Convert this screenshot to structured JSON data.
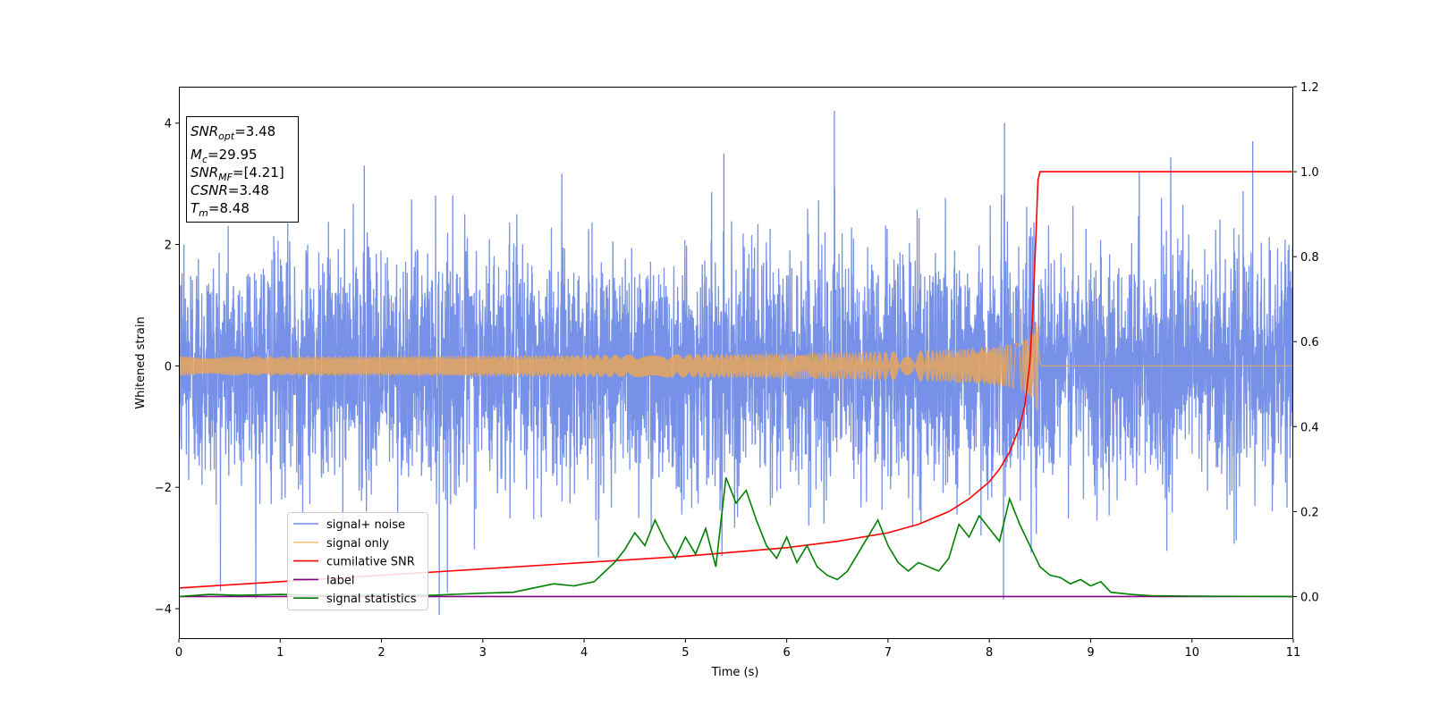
{
  "chart_data": {
    "type": "line",
    "xlabel": "Time (s)",
    "ylabel": "Whitened strain",
    "xlim": [
      0,
      11
    ],
    "ylim_left": [
      -4.5,
      4.6
    ],
    "ylim_right": [
      -0.1,
      1.2
    ],
    "x_ticks": [
      "0",
      "1",
      "2",
      "3",
      "4",
      "5",
      "6",
      "7",
      "8",
      "9",
      "10",
      "11"
    ],
    "y_ticks_left": [
      "−4",
      "−2",
      "0",
      "2",
      "4"
    ],
    "y_ticks_left_values": [
      -4,
      -2,
      0,
      2,
      4
    ],
    "y_ticks_right": [
      "0.0",
      "0.2",
      "0.4",
      "0.6",
      "0.8",
      "1.0",
      "1.2"
    ],
    "y_ticks_right_values": [
      0.0,
      0.2,
      0.4,
      0.6,
      0.8,
      1.0,
      1.2
    ],
    "legend_position": "lower-left",
    "series": [
      {
        "name": "signal+ noise",
        "color": "#6f8be6",
        "axis": "left",
        "kind": "noise",
        "sigma": 0.95,
        "spike_times": [
          0.05,
          1.83,
          5.38,
          6.47,
          8.15,
          9.48,
          10.6,
          2.57,
          8.14
        ]
      },
      {
        "name": "signal only",
        "color": "#f4c27a",
        "axis": "left",
        "kind": "chirp",
        "merger_time": 8.48,
        "peak_amplitude": 0.75
      },
      {
        "name": "cumilative SNR",
        "color": "#ff0000",
        "axis": "right",
        "x": [
          0,
          1,
          2,
          3,
          4,
          5,
          5.5,
          6,
          6.5,
          7,
          7.3,
          7.6,
          7.8,
          8.0,
          8.1,
          8.2,
          8.3,
          8.35,
          8.4,
          8.43,
          8.46,
          8.48,
          8.5,
          11
        ],
        "y": [
          0.02,
          0.035,
          0.05,
          0.065,
          0.08,
          0.095,
          0.105,
          0.115,
          0.13,
          0.15,
          0.17,
          0.2,
          0.23,
          0.27,
          0.3,
          0.34,
          0.4,
          0.45,
          0.55,
          0.68,
          0.85,
          0.98,
          1.0,
          1.0
        ]
      },
      {
        "name": "label",
        "color": "#800080",
        "axis": "right",
        "x": [
          0,
          11
        ],
        "y": [
          0.0,
          0.0
        ]
      },
      {
        "name": "signal statistics",
        "color": "#008000",
        "axis": "right",
        "x": [
          0,
          0.3,
          0.6,
          1.0,
          1.5,
          2.0,
          2.5,
          3.0,
          3.3,
          3.5,
          3.7,
          3.9,
          4.1,
          4.3,
          4.4,
          4.5,
          4.6,
          4.7,
          4.8,
          4.9,
          5.0,
          5.1,
          5.2,
          5.3,
          5.4,
          5.5,
          5.6,
          5.7,
          5.8,
          5.9,
          6.0,
          6.1,
          6.2,
          6.3,
          6.4,
          6.5,
          6.6,
          6.7,
          6.8,
          6.9,
          7.0,
          7.1,
          7.2,
          7.3,
          7.4,
          7.5,
          7.6,
          7.7,
          7.8,
          7.9,
          8.0,
          8.1,
          8.2,
          8.3,
          8.4,
          8.5,
          8.6,
          8.7,
          8.8,
          8.9,
          9.0,
          9.1,
          9.2,
          9.4,
          9.6,
          10.0,
          11.0
        ],
        "y": [
          0.0,
          0.005,
          0.003,
          0.005,
          0.002,
          0.005,
          0.003,
          0.008,
          0.01,
          0.02,
          0.03,
          0.025,
          0.035,
          0.08,
          0.11,
          0.15,
          0.12,
          0.18,
          0.13,
          0.09,
          0.14,
          0.1,
          0.16,
          0.07,
          0.28,
          0.22,
          0.25,
          0.18,
          0.12,
          0.09,
          0.14,
          0.08,
          0.12,
          0.07,
          0.05,
          0.04,
          0.06,
          0.1,
          0.14,
          0.18,
          0.12,
          0.08,
          0.06,
          0.08,
          0.07,
          0.06,
          0.09,
          0.17,
          0.14,
          0.19,
          0.16,
          0.13,
          0.23,
          0.17,
          0.12,
          0.07,
          0.05,
          0.045,
          0.03,
          0.04,
          0.025,
          0.035,
          0.01,
          0.005,
          0.002,
          0.001,
          0.0
        ]
      }
    ],
    "annotation": {
      "lines": [
        {
          "name": "SNR",
          "sub": "opt",
          "value": "=3.48"
        },
        {
          "name": "M",
          "sub": "c",
          "value": "=29.95"
        },
        {
          "name": "SNR",
          "sub": "MF",
          "value": "=[4.21]"
        },
        {
          "name": "CSNR",
          "sub": "",
          "value": "=3.48"
        },
        {
          "name": "T",
          "sub": "m",
          "value": "=8.48"
        }
      ]
    }
  }
}
